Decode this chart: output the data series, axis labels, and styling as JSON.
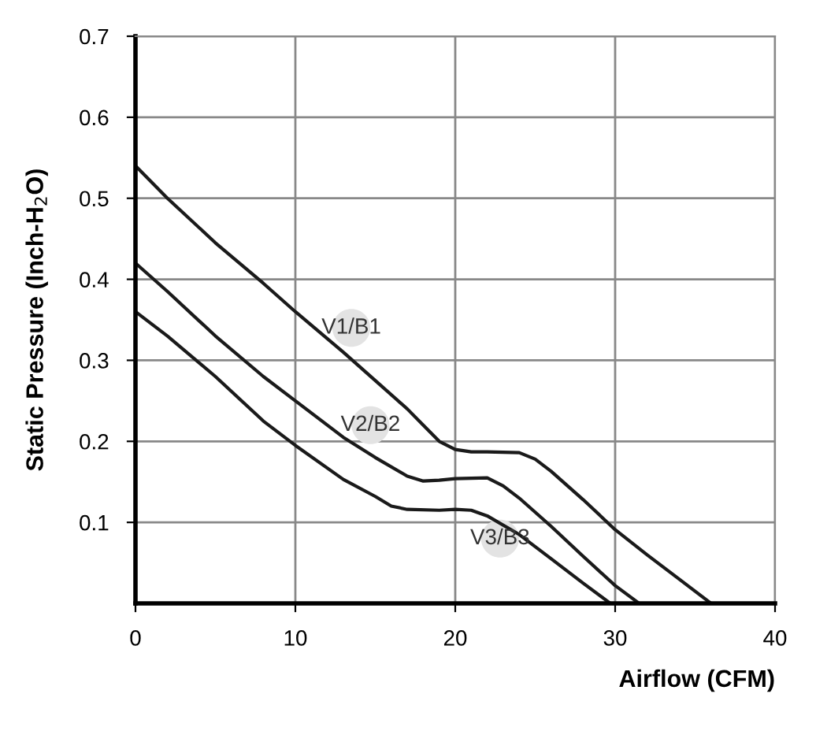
{
  "chart_data": {
    "type": "line",
    "xlabel": "Airflow (CFM)",
    "ylabel": "Static Pressure (Inch-H$_{2}$O)",
    "xlim": [
      0,
      40
    ],
    "ylim": [
      0,
      0.7
    ],
    "xticks": [
      0,
      10,
      20,
      30,
      40
    ],
    "yticks": [
      0.1,
      0.2,
      0.3,
      0.4,
      0.5,
      0.6,
      0.7
    ],
    "grid": true,
    "marker": "none",
    "line_style": "solid",
    "series": [
      {
        "color": "#1a1a1a",
        "x": [
          0,
          2,
          5,
          8,
          10,
          13,
          15,
          17,
          18,
          19,
          20,
          21,
          22,
          24,
          25,
          26,
          28,
          30,
          32,
          34,
          36
        ],
        "values": [
          0.54,
          0.5,
          0.445,
          0.395,
          0.36,
          0.31,
          0.275,
          0.24,
          0.22,
          0.2,
          0.19,
          0.187,
          0.187,
          0.186,
          0.178,
          0.163,
          0.128,
          0.091,
          0.06,
          0.03,
          0
        ]
      },
      {
        "color": "#1a1a1a",
        "x": [
          0,
          2,
          5,
          8,
          10,
          13,
          15,
          17,
          18,
          19,
          20,
          22,
          23,
          24,
          26,
          28,
          30,
          31.5
        ],
        "values": [
          0.42,
          0.385,
          0.33,
          0.28,
          0.25,
          0.205,
          0.18,
          0.157,
          0.151,
          0.152,
          0.154,
          0.155,
          0.145,
          0.13,
          0.095,
          0.058,
          0.022,
          0
        ]
      },
      {
        "color": "#1a1a1a",
        "x": [
          0,
          2,
          5,
          8,
          10,
          13,
          15,
          16,
          17,
          19,
          20,
          21,
          22,
          24,
          26,
          28,
          29.7
        ],
        "values": [
          0.36,
          0.33,
          0.28,
          0.225,
          0.195,
          0.153,
          0.132,
          0.12,
          0.116,
          0.115,
          0.116,
          0.115,
          0.108,
          0.085,
          0.055,
          0.025,
          0
        ]
      }
    ],
    "annotations": [
      {
        "text": "V1/B1",
        "x": 13.5,
        "y": 0.34
      },
      {
        "text": "V2/B2",
        "x": 14.7,
        "y": 0.22
      },
      {
        "text": "V3/B3",
        "x": 22.8,
        "y": 0.08
      }
    ]
  }
}
